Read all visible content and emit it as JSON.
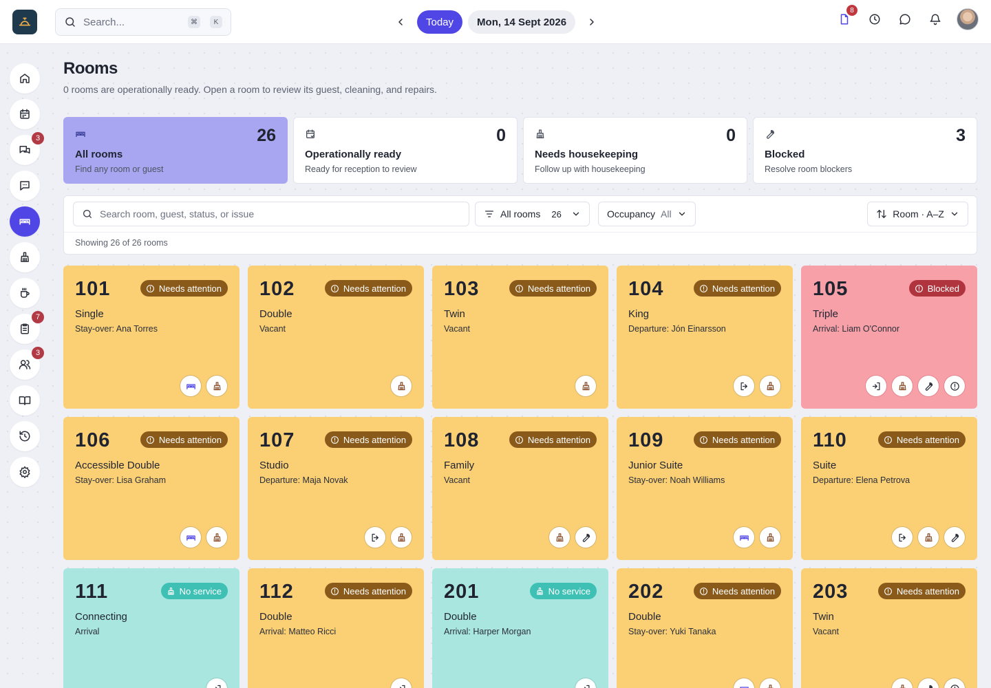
{
  "topbar": {
    "search_placeholder": "Search...",
    "shortcut_keys": [
      "⌘",
      "K"
    ],
    "today_label": "Today",
    "date_label": "Mon, 14 Sept 2026",
    "notifications_badge": "8"
  },
  "sidebar": {
    "items": [
      {
        "name": "home",
        "icon": "home-icon",
        "badge": ""
      },
      {
        "name": "calendar",
        "icon": "calendar-icon",
        "badge": ""
      },
      {
        "name": "messages",
        "icon": "chat-icon",
        "badge": "3"
      },
      {
        "name": "feedback",
        "icon": "message-square-icon",
        "badge": ""
      },
      {
        "name": "rooms",
        "icon": "bed-icon",
        "badge": "",
        "active": true
      },
      {
        "name": "housekeeping",
        "icon": "broom-icon",
        "badge": ""
      },
      {
        "name": "breakfast",
        "icon": "coffee-icon",
        "badge": ""
      },
      {
        "name": "tasks",
        "icon": "clipboard-icon",
        "badge": "7"
      },
      {
        "name": "guests",
        "icon": "users-icon",
        "badge": "3"
      },
      {
        "name": "guide",
        "icon": "book-icon",
        "badge": ""
      },
      {
        "name": "history",
        "icon": "history-icon",
        "badge": ""
      },
      {
        "name": "settings",
        "icon": "gear-icon",
        "badge": ""
      }
    ]
  },
  "page": {
    "title": "Rooms",
    "subtitle": "0 rooms are operationally ready. Open a room to review its guest, cleaning, and repairs."
  },
  "stats": [
    {
      "id": "all",
      "icon": "bed-icon",
      "count": "26",
      "title": "All rooms",
      "desc": "Find any room or guest",
      "active": true
    },
    {
      "id": "ready",
      "icon": "calendar-check-icon",
      "count": "0",
      "title": "Operationally ready",
      "desc": "Ready for reception to review",
      "active": false
    },
    {
      "id": "housekeeping",
      "icon": "broom-icon",
      "count": "0",
      "title": "Needs housekeeping",
      "desc": "Follow up with housekeeping",
      "active": false
    },
    {
      "id": "blocked",
      "icon": "wrench-icon",
      "count": "3",
      "title": "Blocked",
      "desc": "Resolve room blockers",
      "active": false
    }
  ],
  "filters": {
    "search_placeholder": "Search room, guest, status, or issue",
    "rooms_label": "All rooms",
    "rooms_count": "26",
    "occupancy_label": "Occupancy",
    "occupancy_value": "All",
    "sort_label": "Room · A–Z",
    "showing": "Showing 26 of 26 rooms"
  },
  "rooms": [
    {
      "number": "101",
      "type": "Single",
      "guest": "Stay-over: Ana Torres",
      "status": "attention",
      "status_label": "Needs attention",
      "actions": [
        "bed",
        "broom"
      ]
    },
    {
      "number": "102",
      "type": "Double",
      "guest": "Vacant",
      "status": "attention",
      "status_label": "Needs attention",
      "actions": [
        "broom"
      ]
    },
    {
      "number": "103",
      "type": "Twin",
      "guest": "Vacant",
      "status": "attention",
      "status_label": "Needs attention",
      "actions": [
        "broom"
      ]
    },
    {
      "number": "104",
      "type": "King",
      "guest": "Departure: Jón Einarsson",
      "status": "attention",
      "status_label": "Needs attention",
      "actions": [
        "logout",
        "broom"
      ]
    },
    {
      "number": "105",
      "type": "Triple",
      "guest": "Arrival: Liam O'Connor",
      "status": "blocked",
      "status_label": "Blocked",
      "actions": [
        "login",
        "broom",
        "wrench",
        "alert"
      ]
    },
    {
      "number": "106",
      "type": "Accessible Double",
      "guest": "Stay-over: Lisa Graham",
      "status": "attention",
      "status_label": "Needs attention",
      "actions": [
        "bed",
        "broom"
      ]
    },
    {
      "number": "107",
      "type": "Studio",
      "guest": "Departure: Maja Novak",
      "status": "attention",
      "status_label": "Needs attention",
      "actions": [
        "logout",
        "broom"
      ]
    },
    {
      "number": "108",
      "type": "Family",
      "guest": "Vacant",
      "status": "attention",
      "status_label": "Needs attention",
      "actions": [
        "broom",
        "wrench"
      ]
    },
    {
      "number": "109",
      "type": "Junior Suite",
      "guest": "Stay-over: Noah Williams",
      "status": "attention",
      "status_label": "Needs attention",
      "actions": [
        "bed",
        "broom"
      ]
    },
    {
      "number": "110",
      "type": "Suite",
      "guest": "Departure: Elena Petrova",
      "status": "attention",
      "status_label": "Needs attention",
      "actions": [
        "logout",
        "broom",
        "wrench"
      ]
    },
    {
      "number": "111",
      "type": "Connecting",
      "guest": "Arrival",
      "status": "noservice",
      "status_label": "No service",
      "actions": [
        "login"
      ]
    },
    {
      "number": "112",
      "type": "Double",
      "guest": "Arrival: Matteo Ricci",
      "status": "attention",
      "status_label": "Needs attention",
      "actions": [
        "login"
      ]
    },
    {
      "number": "201",
      "type": "Double",
      "guest": "Arrival: Harper Morgan",
      "status": "noservice",
      "status_label": "No service",
      "actions": [
        "login"
      ]
    },
    {
      "number": "202",
      "type": "Double",
      "guest": "Stay-over: Yuki Tanaka",
      "status": "attention",
      "status_label": "Needs attention",
      "actions": [
        "bed",
        "broom"
      ]
    },
    {
      "number": "203",
      "type": "Twin",
      "guest": "Vacant",
      "status": "attention",
      "status_label": "Needs attention",
      "actions": [
        "broom",
        "wrench",
        "alert"
      ]
    }
  ],
  "colors": {
    "accent": "#4f46e5",
    "attention_card": "#fbcf74",
    "blocked_card": "#f7a0a8",
    "noservice_card": "#a8e6df",
    "badge_red": "#c0383f"
  }
}
